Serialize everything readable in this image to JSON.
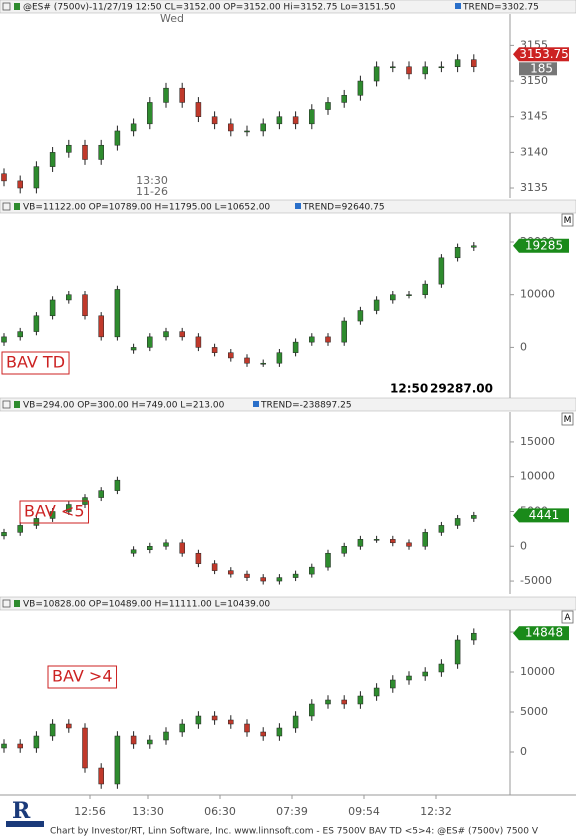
{
  "chart_data": [
    {
      "type": "candlestick",
      "header": "@ES# (7500v)-11/27/19 12:50 CL=3152.00 OP=3152.00 Hi=3152.75 Lo=3151.50",
      "trend": "TREND=3302.75",
      "corner": null,
      "day_label": "Wed",
      "time_note": "13:30",
      "date_note": "11-26",
      "count_label": "185",
      "ylim": [
        3133.6,
        3159.4
      ],
      "yticks": [
        3135,
        3140,
        3145,
        3150,
        3155
      ],
      "last_value": 3153.75,
      "last_color": "#cc2222",
      "up_color": "#2e8b2e",
      "down_color": "#c0392b",
      "open": [
        3137,
        3136,
        3135,
        3138,
        3140,
        3141,
        3139,
        3141,
        3143,
        3144,
        3147,
        3149,
        3147,
        3145,
        3144,
        3143,
        3143,
        3144,
        3145,
        3144,
        3146,
        3147,
        3148,
        3150,
        3152,
        3152,
        3151,
        3152,
        3152,
        3153
      ],
      "high": [
        3137.75,
        3136.75,
        3138.75,
        3140.75,
        3141.75,
        3141.75,
        3141.75,
        3143.75,
        3144.75,
        3147.75,
        3149.75,
        3149.75,
        3147.75,
        3145.75,
        3144.75,
        3143.75,
        3144.75,
        3145.75,
        3145.75,
        3146.75,
        3147.75,
        3148.75,
        3150.75,
        3152.75,
        3152.75,
        3152.75,
        3152.75,
        3152.75,
        3153.75,
        3153.75
      ],
      "low": [
        3135.25,
        3134.25,
        3134.25,
        3137.25,
        3139.25,
        3138.25,
        3138.25,
        3140.25,
        3142.25,
        3143.25,
        3146.25,
        3146.25,
        3144.25,
        3143.25,
        3142.25,
        3142.25,
        3142.25,
        3143.25,
        3143.25,
        3143.25,
        3145.25,
        3146.25,
        3147.25,
        3149.25,
        3151.25,
        3150.25,
        3150.25,
        3151.25,
        3151.25,
        3151.25
      ],
      "close": [
        3136,
        3135,
        3138,
        3140,
        3141,
        3139,
        3141,
        3143,
        3144,
        3147,
        3149,
        3147,
        3145,
        3144,
        3143,
        3143,
        3144,
        3145,
        3144,
        3146,
        3147,
        3148,
        3150,
        3152,
        3152,
        3151,
        3152,
        3152,
        3153,
        3152
      ]
    },
    {
      "type": "candlestick",
      "header": "VB=11122.00 OP=10789.00 H=11795.00 L=10652.00",
      "trend": "TREND=92640.75",
      "corner": "M",
      "label": "BAV TD",
      "time_note": "12:50",
      "value_note": "29287.00",
      "ylim": [
        -9600,
        25500
      ],
      "yticks": [
        0,
        10000,
        20000
      ],
      "last_value": 19285,
      "last_color": "#1a8a1a",
      "up_color": "#2e8b2e",
      "down_color": "#c0392b",
      "open": [
        1000,
        2000,
        3000,
        6000,
        9000,
        10000,
        6000,
        2000,
        -500,
        0,
        2000,
        3000,
        2000,
        0,
        -1000,
        -2000,
        -3000,
        -3000,
        -1000,
        1000,
        2000,
        1000,
        5000,
        7000,
        9000,
        10000,
        10000,
        12000,
        17000,
        19000
      ],
      "high": [
        2700,
        3700,
        6700,
        9700,
        10700,
        10700,
        6700,
        11700,
        700,
        2700,
        3700,
        3700,
        2700,
        700,
        -300,
        -1300,
        -2300,
        -300,
        1700,
        2700,
        2700,
        5700,
        7700,
        9700,
        10700,
        10700,
        12700,
        17700,
        19700,
        19985
      ],
      "low": [
        300,
        1300,
        2300,
        5300,
        8300,
        5300,
        1300,
        1300,
        -1200,
        -700,
        1300,
        1300,
        -700,
        -1700,
        -2700,
        -3700,
        -3700,
        -3700,
        -1700,
        300,
        300,
        300,
        4300,
        6300,
        8300,
        9300,
        9300,
        11300,
        16300,
        18300
      ],
      "close": [
        2000,
        3000,
        6000,
        9000,
        10000,
        6000,
        2000,
        11000,
        0,
        2000,
        3000,
        2000,
        0,
        -1000,
        -2000,
        -3000,
        -3000,
        -1000,
        1000,
        2000,
        1000,
        5000,
        7000,
        9000,
        10000,
        10000,
        12000,
        17000,
        19000,
        19285
      ]
    },
    {
      "type": "candlestick",
      "header": "VB=294.00 OP=300.00 H=749.00 L=213.00",
      "trend": "TREND=-238897.25",
      "corner": "M",
      "label": "BAV <5",
      "ylim": [
        -6860,
        19300
      ],
      "yticks": [
        -5000,
        0,
        5000,
        10000,
        15000
      ],
      "last_value": 4441,
      "last_color": "#1a8a1a",
      "up_color": "#2e8b2e",
      "down_color": "#c0392b",
      "open": [
        1500,
        2000,
        3000,
        4000,
        5000,
        6000,
        7000,
        8000,
        -1000,
        -500,
        0,
        500,
        -1000,
        -2500,
        -3500,
        -4000,
        -4500,
        -5000,
        -4500,
        -4000,
        -3000,
        -1000,
        0,
        1000,
        1000,
        500,
        0,
        2000,
        3000,
        4000
      ],
      "high": [
        2500,
        3500,
        4500,
        5500,
        6500,
        7500,
        8500,
        10000,
        0,
        500,
        1000,
        1000,
        -500,
        -2000,
        -3000,
        -3500,
        -4000,
        -4000,
        -3500,
        -2500,
        -500,
        500,
        1500,
        1500,
        1500,
        1000,
        2500,
        3500,
        4500,
        4941
      ],
      "low": [
        1000,
        1500,
        2500,
        3500,
        4500,
        5500,
        6500,
        7500,
        -1500,
        -1000,
        -500,
        -1500,
        -3000,
        -4000,
        -4500,
        -5000,
        -5500,
        -5500,
        -5000,
        -4500,
        -3500,
        -1500,
        -500,
        500,
        0,
        -500,
        -500,
        1500,
        2500,
        3500
      ],
      "close": [
        2000,
        3000,
        4000,
        5000,
        6000,
        7000,
        8000,
        9500,
        -500,
        0,
        500,
        -1000,
        -2500,
        -3500,
        -4000,
        -4500,
        -5000,
        -4500,
        -4000,
        -3000,
        -1000,
        0,
        1000,
        1000,
        500,
        0,
        2000,
        3000,
        4000,
        4441
      ]
    },
    {
      "type": "candlestick",
      "header": "VB=10828.00 OP=10489.00 H=11111.00 L=10439.00",
      "trend": null,
      "corner": "A",
      "label": "BAV >4",
      "ylim": [
        -5375,
        17750
      ],
      "yticks": [
        0,
        5000,
        10000,
        15000
      ],
      "last_value": 14848,
      "last_color": "#1a8a1a",
      "up_color": "#2e8b2e",
      "down_color": "#c0392b",
      "open": [
        500,
        1000,
        500,
        2000,
        3500,
        3000,
        -2000,
        -4000,
        2000,
        1000,
        1500,
        2500,
        3500,
        4500,
        4000,
        3500,
        2500,
        2000,
        3000,
        4500,
        6000,
        6500,
        6000,
        7000,
        8000,
        9000,
        9500,
        10000,
        11000,
        14000
      ],
      "high": [
        1600,
        1600,
        2600,
        4100,
        4100,
        3600,
        -1400,
        2600,
        2600,
        2100,
        3100,
        4100,
        5100,
        5100,
        4600,
        4100,
        3100,
        3600,
        5100,
        6600,
        7100,
        7100,
        7600,
        8600,
        9600,
        10100,
        10600,
        11600,
        14600,
        15448
      ],
      "low": [
        -100,
        -100,
        -100,
        1400,
        2400,
        -2600,
        -4600,
        -4600,
        400,
        400,
        900,
        1900,
        2900,
        3400,
        2900,
        1900,
        1400,
        1400,
        2400,
        3900,
        5400,
        5400,
        5400,
        6400,
        7400,
        8400,
        8900,
        9400,
        10400,
        13400
      ],
      "close": [
        1000,
        500,
        2000,
        3500,
        3000,
        -2000,
        -4000,
        2000,
        1000,
        1500,
        2500,
        3500,
        4500,
        4000,
        3500,
        2500,
        2000,
        3000,
        4500,
        6000,
        6500,
        6000,
        7000,
        8000,
        9000,
        9500,
        10000,
        11000,
        14000,
        14848
      ]
    }
  ],
  "time_axis": {
    "labels": [
      "12:56",
      "13:30",
      "06:30",
      "07:39",
      "09:54",
      "12:32"
    ]
  },
  "footer": "Chart by Investor/RT, Linn Software, Inc. www.linnsoft.com - ES 7500V BAV TD <5>4: @ES# (7500v) 7500 V"
}
